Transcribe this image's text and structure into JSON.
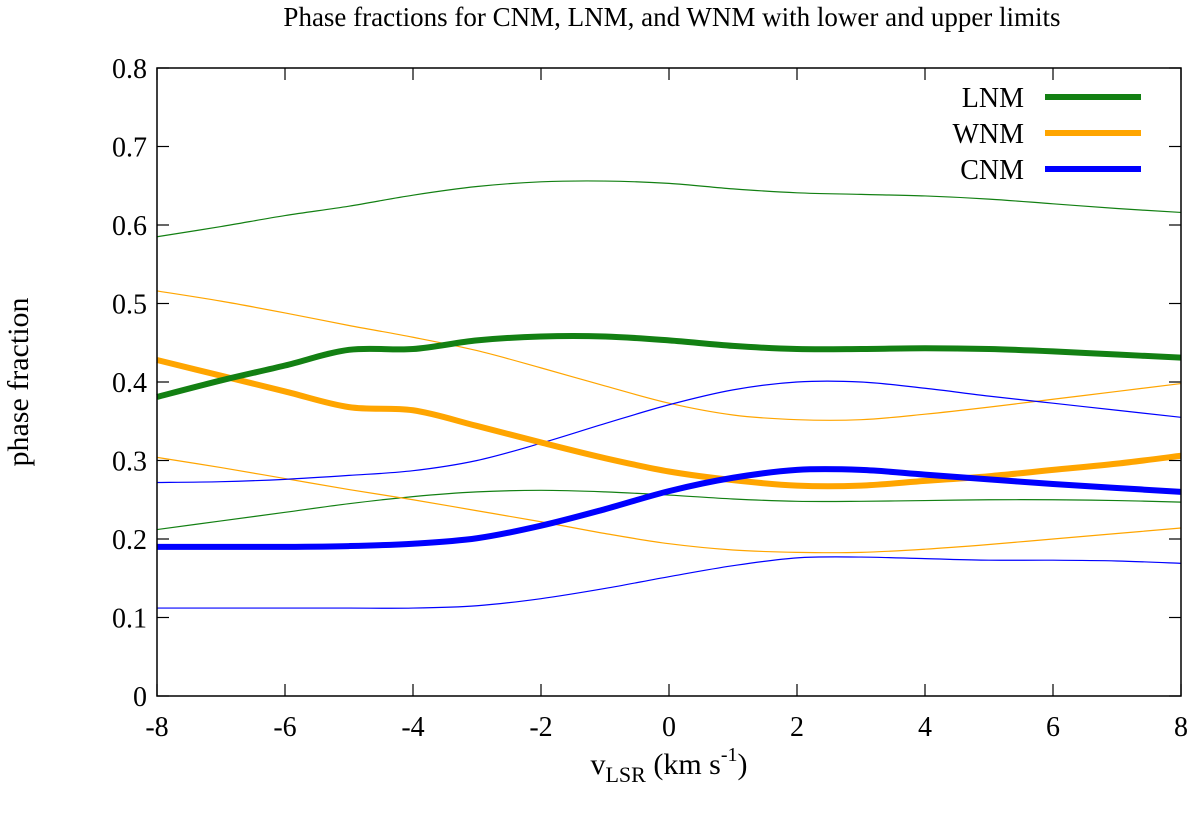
{
  "chart_data": {
    "type": "line",
    "title": "Phase fractions for CNM, LNM, and WNM with lower and upper limits",
    "xlabel": {
      "main": "v",
      "sub": "LSR",
      "unit_pre": " (km s",
      "unit_sup": "-1",
      "unit_post": ")"
    },
    "ylabel": "phase fraction",
    "xlim": [
      -8,
      8
    ],
    "ylim": [
      0,
      0.8
    ],
    "x_ticks": [
      -8,
      -6,
      -4,
      -2,
      0,
      2,
      4,
      6,
      8
    ],
    "y_ticks": [
      0,
      0.1,
      0.2,
      0.3,
      0.4,
      0.5,
      0.6,
      0.7,
      0.8
    ],
    "x_tick_labels": [
      "-8",
      "-6",
      "-4",
      "-2",
      "0",
      "2",
      "4",
      "6",
      "8"
    ],
    "y_tick_labels": [
      "0",
      "0.1",
      "0.2",
      "0.3",
      "0.4",
      "0.5",
      "0.6",
      "0.7",
      "0.8"
    ],
    "grid": false,
    "legend_position": "top-right",
    "x": [
      -8,
      -7,
      -6,
      -5,
      -4,
      -3,
      -2,
      -1,
      0,
      1,
      2,
      3,
      4,
      5,
      6,
      7,
      8
    ],
    "series": [
      {
        "name": "LNM",
        "role": "main",
        "color": "#138013",
        "values": [
          0.381,
          0.402,
          0.421,
          0.441,
          0.442,
          0.453,
          0.458,
          0.458,
          0.453,
          0.446,
          0.442,
          0.442,
          0.443,
          0.442,
          0.439,
          0.435,
          0.431
        ]
      },
      {
        "name": "WNM",
        "role": "main",
        "color": "#ffa500",
        "values": [
          0.428,
          0.408,
          0.388,
          0.368,
          0.364,
          0.344,
          0.323,
          0.303,
          0.286,
          0.275,
          0.268,
          0.268,
          0.274,
          0.28,
          0.288,
          0.296,
          0.306
        ]
      },
      {
        "name": "CNM",
        "role": "main",
        "color": "#0000ff",
        "values": [
          0.19,
          0.19,
          0.19,
          0.191,
          0.194,
          0.201,
          0.217,
          0.238,
          0.261,
          0.278,
          0.288,
          0.288,
          0.282,
          0.276,
          0.27,
          0.265,
          0.26
        ]
      },
      {
        "name": "LNM upper",
        "role": "limit",
        "color": "#138013",
        "values": [
          0.585,
          0.598,
          0.612,
          0.624,
          0.638,
          0.649,
          0.655,
          0.656,
          0.653,
          0.646,
          0.641,
          0.639,
          0.637,
          0.633,
          0.627,
          0.621,
          0.616
        ]
      },
      {
        "name": "LNM lower",
        "role": "limit",
        "color": "#138013",
        "values": [
          0.212,
          0.223,
          0.234,
          0.245,
          0.254,
          0.26,
          0.262,
          0.26,
          0.256,
          0.251,
          0.248,
          0.248,
          0.249,
          0.25,
          0.25,
          0.249,
          0.247
        ]
      },
      {
        "name": "WNM upper",
        "role": "limit",
        "color": "#ffa500",
        "values": [
          0.516,
          0.503,
          0.488,
          0.472,
          0.457,
          0.44,
          0.418,
          0.395,
          0.373,
          0.358,
          0.352,
          0.352,
          0.359,
          0.368,
          0.378,
          0.388,
          0.398
        ]
      },
      {
        "name": "WNM lower",
        "role": "limit",
        "color": "#ffa500",
        "values": [
          0.304,
          0.291,
          0.277,
          0.263,
          0.25,
          0.236,
          0.222,
          0.207,
          0.194,
          0.186,
          0.183,
          0.183,
          0.187,
          0.193,
          0.2,
          0.207,
          0.214
        ]
      },
      {
        "name": "CNM upper",
        "role": "limit",
        "color": "#0000ff",
        "values": [
          0.272,
          0.273,
          0.276,
          0.281,
          0.287,
          0.3,
          0.322,
          0.347,
          0.371,
          0.39,
          0.4,
          0.4,
          0.392,
          0.382,
          0.373,
          0.364,
          0.355
        ]
      },
      {
        "name": "CNM lower",
        "role": "limit",
        "color": "#0000ff",
        "values": [
          0.112,
          0.112,
          0.112,
          0.112,
          0.112,
          0.115,
          0.124,
          0.137,
          0.152,
          0.166,
          0.176,
          0.177,
          0.175,
          0.173,
          0.173,
          0.172,
          0.169
        ]
      }
    ],
    "legend": [
      "LNM",
      "WNM",
      "CNM"
    ]
  }
}
